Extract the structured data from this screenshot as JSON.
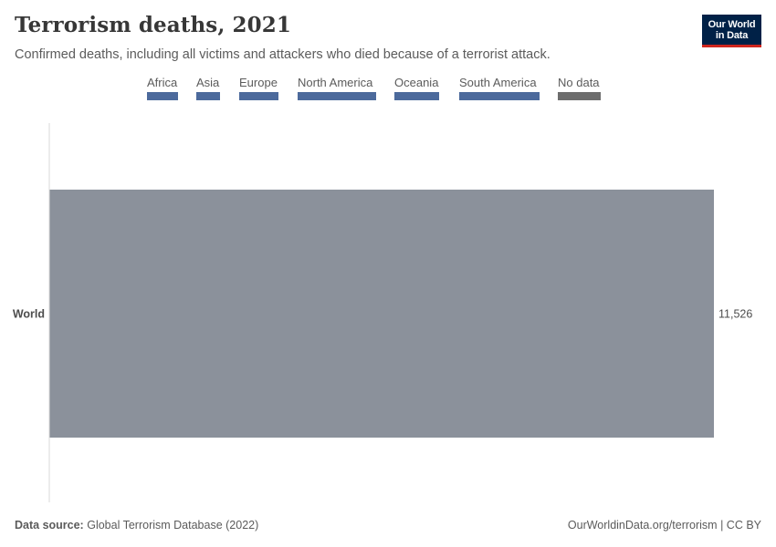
{
  "header": {
    "title": "Terrorism deaths, 2021",
    "subtitle": "Confirmed deaths, including all victims and attackers who died because of a terrorist attack."
  },
  "logo": {
    "line1": "Our World",
    "line2": "in Data"
  },
  "legend": {
    "items": [
      {
        "label": "Africa",
        "color": "#4c6a9c"
      },
      {
        "label": "Asia",
        "color": "#4c6a9c"
      },
      {
        "label": "Europe",
        "color": "#4c6a9c"
      },
      {
        "label": "North America",
        "color": "#4c6a9c"
      },
      {
        "label": "Oceania",
        "color": "#4c6a9c"
      },
      {
        "label": "South America",
        "color": "#4c6a9c"
      },
      {
        "label": "No data",
        "color": "#6d6d6d"
      }
    ]
  },
  "chart_data": {
    "type": "bar",
    "orientation": "horizontal",
    "title": "Terrorism deaths, 2021",
    "categories": [
      "World"
    ],
    "values": [
      11526
    ],
    "value_labels": [
      "11,526"
    ],
    "bar_color": "#8b919b",
    "xlim": [
      0,
      11526
    ],
    "grid": false,
    "legend_placement": "top"
  },
  "footer": {
    "source_label": "Data source:",
    "source_text": "Global Terrorism Database (2022)",
    "url_text": "OurWorldinData.org/terrorism | CC BY"
  }
}
